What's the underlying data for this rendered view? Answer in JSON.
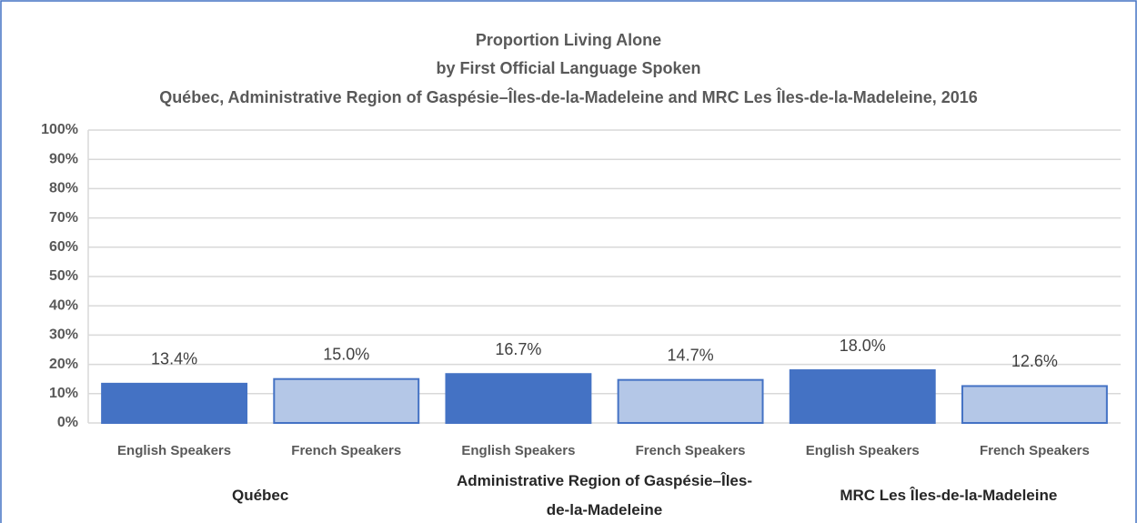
{
  "chart_data": {
    "type": "bar",
    "title": "Proportion Living Alone",
    "subtitle": "by First Official Language Spoken",
    "subtitle2": "Québec, Administrative Region of Gaspésie–Îles-de-la-Madeleine and MRC Les Îles-de-la-Madeleine, 2016",
    "categories": [
      "English Speakers",
      "French Speakers",
      "English Speakers",
      "French Speakers",
      "English Speakers",
      "French Speakers"
    ],
    "groups": [
      "Québec",
      "Administrative Region of Gaspésie–Îles-de-la-Madeleine",
      "MRC Les Îles-de-la-Madeleine"
    ],
    "values": [
      13.4,
      15.0,
      16.7,
      14.7,
      18.0,
      12.6
    ],
    "value_labels": [
      "13.4%",
      "15.0%",
      "16.7%",
      "14.7%",
      "18.0%",
      "12.6%"
    ],
    "colors": [
      "#4472c4",
      "#b4c7e7",
      "#4472c4",
      "#b4c7e7",
      "#4472c4",
      "#b4c7e7"
    ],
    "ylim": [
      0,
      100
    ],
    "yticks": [
      {
        "value": 0,
        "label": "0%"
      },
      {
        "value": 10,
        "label": "10%"
      },
      {
        "value": 20,
        "label": "20%"
      },
      {
        "value": 30,
        "label": "30%"
      },
      {
        "value": 40,
        "label": "40%"
      },
      {
        "value": 50,
        "label": "50%"
      },
      {
        "value": 60,
        "label": "60%"
      },
      {
        "value": 70,
        "label": "70%"
      },
      {
        "value": 80,
        "label": "80%"
      },
      {
        "value": 90,
        "label": "90%"
      },
      {
        "value": 100,
        "label": "100%"
      }
    ],
    "grid": true
  }
}
